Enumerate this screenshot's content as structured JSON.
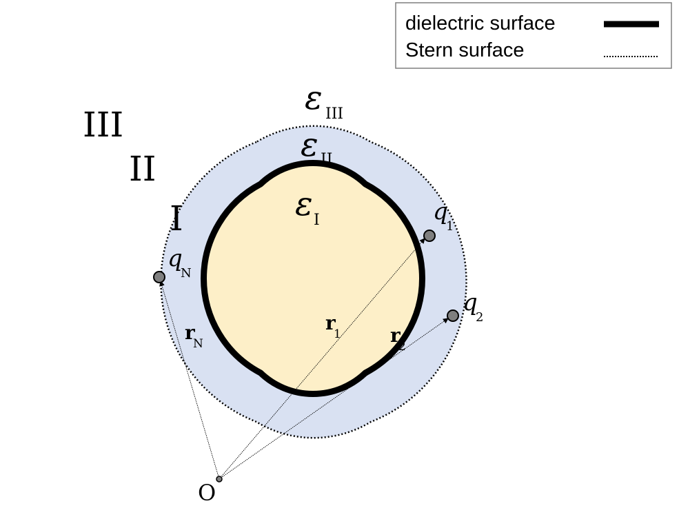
{
  "legend": {
    "items": [
      {
        "label": "dielectric surface",
        "style": "thick-solid"
      },
      {
        "label": "Stern surface",
        "style": "dotted"
      }
    ]
  },
  "regions": {
    "outer": "III",
    "stern_layer": "II",
    "inner": "I"
  },
  "permittivity": {
    "outer": {
      "symbol": "ε",
      "subscript": "III"
    },
    "stern_layer": {
      "symbol": "ε",
      "subscript": "II"
    },
    "inner": {
      "symbol": "ε",
      "subscript": "I"
    }
  },
  "charges": [
    {
      "symbol": "q",
      "subscript": "1"
    },
    {
      "symbol": "q",
      "subscript": "2"
    },
    {
      "symbol": "q",
      "subscript": "N"
    }
  ],
  "position_vectors": [
    {
      "symbol": "r",
      "subscript": "1"
    },
    {
      "symbol": "r",
      "subscript": "2"
    },
    {
      "symbol": "r",
      "subscript": "N"
    }
  ],
  "origin": {
    "label": "O"
  },
  "colors": {
    "inner_fill": "#fdefc8",
    "stern_fill": "#d9e1f2",
    "surface_stroke": "#000000",
    "charge_fill": "#7f7f7f",
    "legend_border": "#7f7f7f"
  }
}
